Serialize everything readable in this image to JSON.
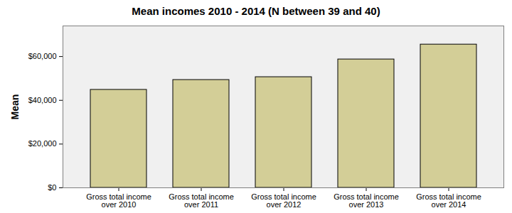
{
  "chart_data": {
    "type": "bar",
    "title": "Mean incomes 2010 - 2014 (N between 39 and 40)",
    "y_label": "Mean",
    "categories": [
      "Gross total income over 2010",
      "Gross total income over 2011",
      "Gross total income over 2012",
      "Gross total income over 2013",
      "Gross total income over 2014"
    ],
    "values": [
      44800,
      49300,
      50600,
      58700,
      65500
    ],
    "color": "#d3ce97",
    "ylim": [
      0,
      74000
    ],
    "yticks": [
      {
        "value": 0,
        "label": "$0"
      },
      {
        "value": 20000,
        "label": "$20,000"
      },
      {
        "value": 40000,
        "label": "$40,000"
      },
      {
        "value": 60000,
        "label": "$60,000"
      }
    ],
    "grid": false
  }
}
